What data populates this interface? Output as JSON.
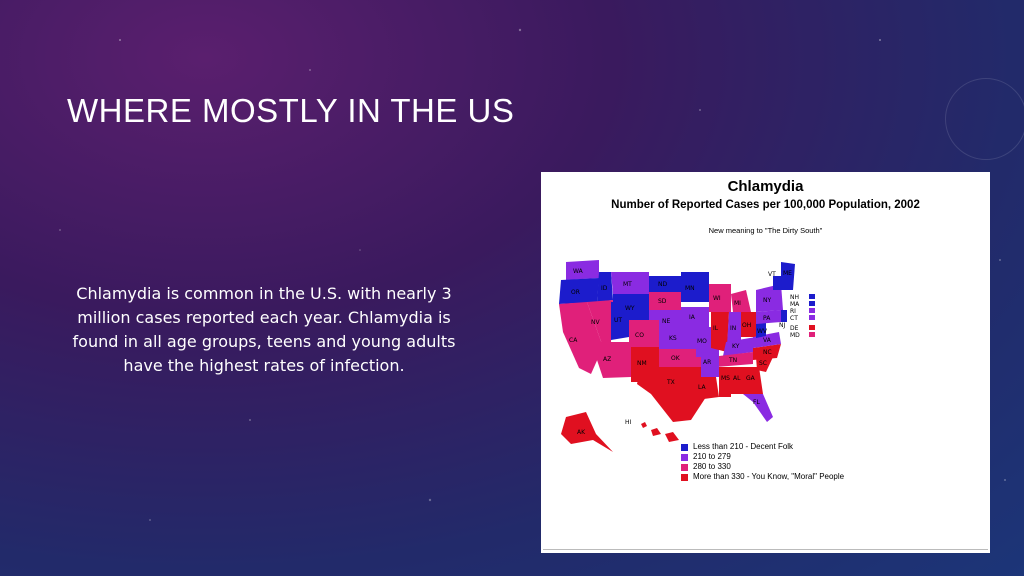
{
  "slide": {
    "title": "WHERE MOSTLY IN THE US",
    "body": "Chlamydia is common in the U.S. with nearly 3 million cases reported each year. Chlamydia is found in all age groups, teens and young adults have the highest rates of infection."
  },
  "figure": {
    "title": "Chlamydia",
    "subtitle": "Number of Reported Cases per 100,000 Population, 2002",
    "note": "New meaning to \"The Dirty South\"",
    "legend": [
      {
        "label": "Less than 210 - Decent Folk",
        "color": "#1c1ccc"
      },
      {
        "label": "210 to 279",
        "color": "#8a2be2"
      },
      {
        "label": "280 to 330",
        "color": "#e0207a"
      },
      {
        "label": "More than 330 - You Know, \"Moral\" People",
        "color": "#e01020"
      }
    ],
    "state_labels": [
      "WA",
      "OR",
      "ID",
      "MT",
      "WY",
      "ND",
      "SD",
      "MN",
      "NE",
      "IA",
      "WI",
      "MI",
      "IL",
      "IN",
      "OH",
      "NV",
      "UT",
      "CO",
      "KS",
      "MO",
      "KY",
      "CA",
      "AZ",
      "NM",
      "OK",
      "AR",
      "TN",
      "TX",
      "LA",
      "MS",
      "AL",
      "GA",
      "SC",
      "NC",
      "VA",
      "WV",
      "PA",
      "NY",
      "ME",
      "VT",
      "FL",
      "AK",
      "HI"
    ],
    "ne_labels": [
      "NH",
      "MA",
      "RI",
      "CT",
      "NJ",
      "DE",
      "MD"
    ],
    "colors": {
      "blue": "#1c1ccc",
      "purple": "#8a2be2",
      "pink": "#e0207a",
      "red": "#e01020"
    }
  }
}
